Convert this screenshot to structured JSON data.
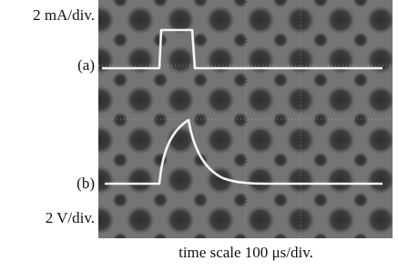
{
  "labels": {
    "current_scale": "2 mA/div.",
    "trace_a": "(a)",
    "trace_b": "(b)",
    "voltage_scale": "2 V/div."
  },
  "caption": "time scale 100 μs/div."
}
